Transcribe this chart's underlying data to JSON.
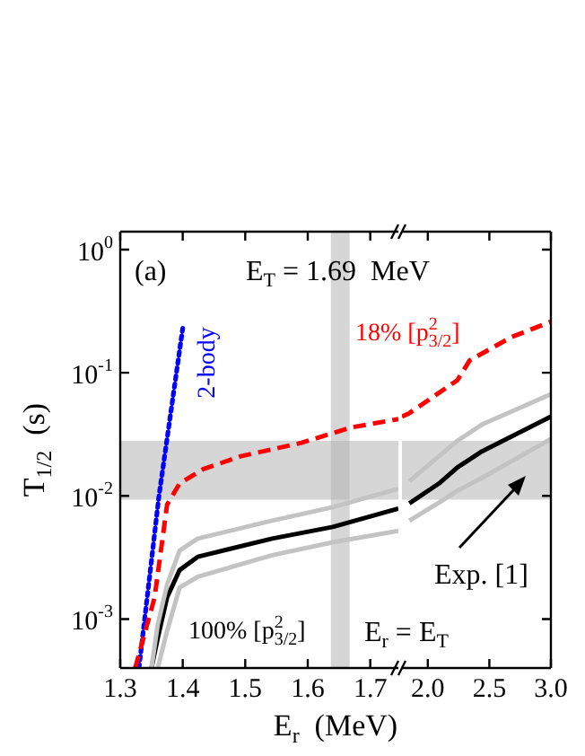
{
  "chart_data": [
    {
      "type": "line",
      "ylabel": "T$_{1/2}$  (s)",
      "xlabel": "E$_{r}$  (MeV)",
      "log": "y",
      "legend": false,
      "xlim": [
        1.3,
        1.745
      ],
      "xticks": [
        1.3,
        1.4,
        1.5,
        1.6,
        1.7
      ],
      "ylim": [
        0.0004,
        1.4
      ],
      "yticks": [
        {
          "value": 0.001,
          "label": "10$^{-3}$"
        },
        {
          "value": 0.01,
          "label": "10$^{-2}$"
        },
        {
          "value": 0.1,
          "label": "10$^{-1}$"
        },
        {
          "value": 1,
          "label": "10$^{0}$"
        }
      ],
      "bands": [
        {
          "axis": "y",
          "from": 0.0093,
          "to": 0.028,
          "color": "#b4b4b4"
        },
        {
          "axis": "x",
          "from": 1.637,
          "to": 1.667,
          "color": "#b4b4b4"
        }
      ],
      "annotations": [
        "(a)",
        "E$_{T}$ = 1.69  MeV",
        "E$_{r}$ = E$_{T}$"
      ],
      "series": [
        {
          "color": "#c3c3c3",
          "line_style": "solid",
          "x": [
            1.35,
            1.36,
            1.375,
            1.395,
            1.424,
            1.543,
            1.64,
            1.745
          ],
          "values": [
            0.0004,
            0.0009,
            0.0019,
            0.0036,
            0.0045,
            0.0063,
            0.0081,
            0.0114
          ]
        },
        {
          "color": "#c3c3c3",
          "line_style": "solid",
          "x": [
            1.36,
            1.375,
            1.395,
            1.424,
            1.543,
            1.64,
            1.745
          ],
          "values": [
            0.0004,
            0.0008,
            0.0018,
            0.0022,
            0.0033,
            0.0042,
            0.0052
          ]
        },
        {
          "name": "100% [p$^{2}$$_{3/2}$]",
          "color": "#000000",
          "line_style": "solid",
          "x": [
            1.35,
            1.36,
            1.375,
            1.395,
            1.424,
            1.543,
            1.64,
            1.745
          ],
          "values": [
            0.0004,
            0.0007,
            0.0015,
            0.0025,
            0.0032,
            0.0045,
            0.0056,
            0.0079
          ]
        },
        {
          "name": "18% [p$^{2}$$_{3/2}$]",
          "color": "#ff0000",
          "line_style": "dashed",
          "x": [
            1.324,
            1.355,
            1.375,
            1.395,
            1.433,
            1.493,
            1.59,
            1.67,
            1.745
          ],
          "values": [
            0.0004,
            0.0015,
            0.0085,
            0.0126,
            0.0165,
            0.021,
            0.027,
            0.036,
            0.042
          ]
        },
        {
          "name": "2-body",
          "color": "#0000ff",
          "line_style": "dotted",
          "x": [
            1.33,
            1.362,
            1.4
          ],
          "values": [
            0.0004,
            0.01,
            0.23
          ]
        }
      ]
    },
    {
      "type": "line",
      "log": "y",
      "legend": false,
      "tick_labels": "x",
      "xlim": [
        1.79,
        3.0
      ],
      "xticks": [
        {
          "value": 2,
          "label": "2.0"
        },
        2.5,
        {
          "value": 3,
          "label": "3.0"
        }
      ],
      "ylim": [
        0.0004,
        1.4
      ],
      "yticks": [
        {
          "value": 0.001,
          "label": null
        },
        {
          "value": 0.01,
          "label": null
        },
        {
          "value": 0.1,
          "label": null
        },
        {
          "value": 1,
          "label": null
        }
      ],
      "bands": [
        {
          "axis": "y",
          "from": 0.0093,
          "to": 0.028,
          "color": "#b4b4b4"
        }
      ],
      "annotations": [
        "Exp. [1]"
      ],
      "series": [
        {
          "color": "#c3c3c3",
          "line_style": "solid",
          "x": [
            1.85,
            2.09,
            2.24,
            2.44,
            3.0
          ],
          "values": [
            0.0131,
            0.021,
            0.028,
            0.038,
            0.067
          ]
        },
        {
          "color": "#c3c3c3",
          "line_style": "solid",
          "x": [
            1.85,
            2.09,
            2.24,
            2.44,
            3.0
          ],
          "values": [
            0.0063,
            0.0088,
            0.011,
            0.014,
            0.029
          ]
        },
        {
          "color": "#000000",
          "line_style": "solid",
          "x": [
            1.85,
            2.09,
            2.24,
            2.44,
            3.0
          ],
          "values": [
            0.0087,
            0.0126,
            0.017,
            0.023,
            0.044
          ]
        },
        {
          "color": "#ff0000",
          "line_style": "dashed",
          "x": [
            1.79,
            1.85,
            2.24,
            2.34,
            2.68,
            3.0
          ],
          "values": [
            0.044,
            0.047,
            0.087,
            0.126,
            0.195,
            0.26
          ]
        }
      ]
    }
  ]
}
